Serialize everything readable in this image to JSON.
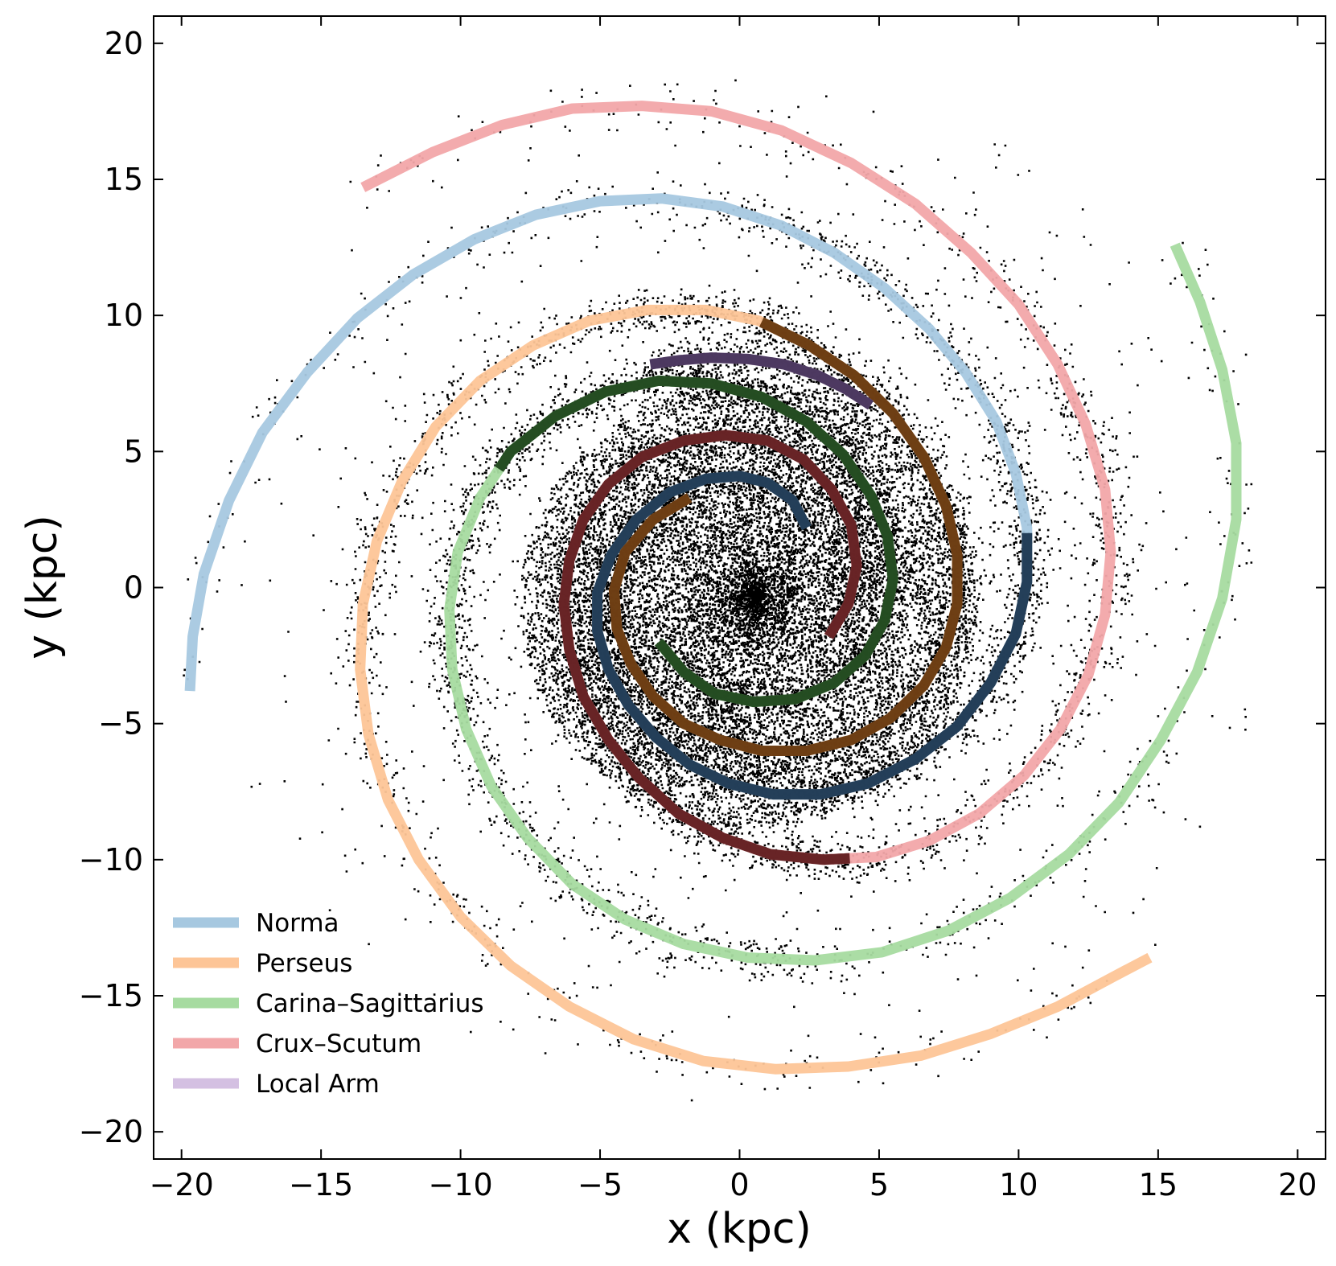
{
  "chart_data": {
    "type": "scatter",
    "title": "",
    "xlabel": "x (kpc)",
    "ylabel": "y (kpc)",
    "xlim": [
      -21,
      21
    ],
    "ylim": [
      -21,
      21
    ],
    "xticks": [
      -20,
      -15,
      -10,
      -5,
      0,
      5,
      10,
      15,
      20
    ],
    "yticks": [
      -20,
      -15,
      -10,
      -5,
      0,
      5,
      10,
      15,
      20
    ],
    "x_tick_labels": [
      "−20",
      "−15",
      "−10",
      "−5",
      "0",
      "5",
      "10",
      "15",
      "20"
    ],
    "y_tick_labels": [
      "−20",
      "−15",
      "−10",
      "−5",
      "0",
      "5",
      "10",
      "15",
      "20"
    ],
    "grid": false,
    "legend_position": "bottom-left",
    "stars": {
      "color": "#000000",
      "description_count": 20000
    },
    "series": [
      {
        "name": "Norma",
        "color": "#a6c8e0",
        "inner_color": "#15304a",
        "points": [
          [
            2.4,
            2.2
          ],
          [
            1.9,
            3.2
          ],
          [
            1.0,
            3.85
          ],
          [
            0.0,
            4.1
          ],
          [
            -1.2,
            4.0
          ],
          [
            -2.5,
            3.5
          ],
          [
            -3.7,
            2.5
          ],
          [
            -4.6,
            1.2
          ],
          [
            -5.1,
            -0.2
          ],
          [
            -5.1,
            -1.6
          ],
          [
            -4.7,
            -3.0
          ],
          [
            -4.0,
            -4.3
          ],
          [
            -3.0,
            -5.5
          ],
          [
            -1.8,
            -6.5
          ],
          [
            -0.4,
            -7.2
          ],
          [
            1.2,
            -7.6
          ],
          [
            2.9,
            -7.6
          ],
          [
            4.6,
            -7.2
          ],
          [
            6.3,
            -6.3
          ],
          [
            7.8,
            -5.1
          ],
          [
            9.0,
            -3.5
          ],
          [
            9.9,
            -1.7
          ],
          [
            10.3,
            0.2
          ],
          [
            10.3,
            2.2
          ],
          [
            9.9,
            4.2
          ],
          [
            9.2,
            6.1
          ],
          [
            8.1,
            7.9
          ],
          [
            6.8,
            9.5
          ],
          [
            5.2,
            11.0
          ],
          [
            3.4,
            12.3
          ],
          [
            1.5,
            13.3
          ],
          [
            -0.6,
            14.0
          ],
          [
            -2.8,
            14.3
          ],
          [
            -5.0,
            14.2
          ],
          [
            -7.3,
            13.7
          ],
          [
            -9.5,
            12.8
          ],
          [
            -11.7,
            11.5
          ],
          [
            -13.7,
            9.9
          ],
          [
            -15.5,
            7.9
          ],
          [
            -17.1,
            5.7
          ],
          [
            -18.3,
            3.2
          ],
          [
            -19.2,
            0.5
          ],
          [
            -19.6,
            -1.8
          ],
          [
            -19.7,
            -3.8
          ]
        ]
      },
      {
        "name": "Perseus",
        "color": "#fdc597",
        "inner_color": "#5e3005",
        "points": [
          [
            -1.8,
            3.3
          ],
          [
            -3.1,
            2.5
          ],
          [
            -4.1,
            1.3
          ],
          [
            -4.5,
            -0.1
          ],
          [
            -4.4,
            -1.5
          ],
          [
            -3.9,
            -2.8
          ],
          [
            -3.1,
            -4.0
          ],
          [
            -2.0,
            -5.0
          ],
          [
            -0.7,
            -5.6
          ],
          [
            0.8,
            -6.0
          ],
          [
            2.4,
            -6.0
          ],
          [
            4.0,
            -5.6
          ],
          [
            5.4,
            -4.8
          ],
          [
            6.6,
            -3.6
          ],
          [
            7.4,
            -2.2
          ],
          [
            7.8,
            -0.6
          ],
          [
            7.8,
            1.2
          ],
          [
            7.4,
            3.0
          ],
          [
            6.6,
            4.8
          ],
          [
            5.5,
            6.4
          ],
          [
            4.1,
            7.8
          ],
          [
            2.5,
            8.9
          ],
          [
            0.7,
            9.8
          ],
          [
            -1.2,
            10.2
          ],
          [
            -3.3,
            10.2
          ],
          [
            -5.4,
            9.8
          ],
          [
            -7.4,
            8.9
          ],
          [
            -9.3,
            7.6
          ],
          [
            -10.9,
            5.9
          ],
          [
            -12.1,
            3.9
          ],
          [
            -13.0,
            1.7
          ],
          [
            -13.5,
            -0.6
          ],
          [
            -13.6,
            -3.0
          ],
          [
            -13.3,
            -5.4
          ],
          [
            -12.6,
            -7.8
          ],
          [
            -11.5,
            -10.0
          ],
          [
            -10.0,
            -12.1
          ],
          [
            -8.2,
            -13.9
          ],
          [
            -6.1,
            -15.4
          ],
          [
            -3.8,
            -16.6
          ],
          [
            -1.3,
            -17.4
          ],
          [
            1.3,
            -17.7
          ],
          [
            3.9,
            -17.6
          ],
          [
            6.5,
            -17.2
          ],
          [
            9.0,
            -16.4
          ],
          [
            11.4,
            -15.4
          ],
          [
            13.4,
            -14.3
          ],
          [
            14.7,
            -13.6
          ]
        ]
      },
      {
        "name": "Carina–Sagittarius",
        "color": "#a6dba0",
        "inner_color": "#163d14",
        "points": [
          [
            -2.9,
            -2.0
          ],
          [
            -2.0,
            -3.1
          ],
          [
            -0.9,
            -3.9
          ],
          [
            0.5,
            -4.2
          ],
          [
            2.0,
            -4.1
          ],
          [
            3.4,
            -3.5
          ],
          [
            4.5,
            -2.5
          ],
          [
            5.2,
            -1.2
          ],
          [
            5.5,
            0.3
          ],
          [
            5.3,
            1.9
          ],
          [
            4.7,
            3.4
          ],
          [
            3.7,
            4.9
          ],
          [
            2.4,
            6.1
          ],
          [
            0.8,
            7.0
          ],
          [
            -1.0,
            7.5
          ],
          [
            -2.9,
            7.6
          ],
          [
            -4.8,
            7.2
          ],
          [
            -6.6,
            6.3
          ],
          [
            -8.2,
            5.0
          ],
          [
            -9.3,
            3.3
          ],
          [
            -10.1,
            1.3
          ],
          [
            -10.4,
            -0.8
          ],
          [
            -10.3,
            -3.0
          ],
          [
            -9.8,
            -5.2
          ],
          [
            -8.9,
            -7.3
          ],
          [
            -7.6,
            -9.2
          ],
          [
            -6.0,
            -10.9
          ],
          [
            -4.1,
            -12.2
          ],
          [
            -2.0,
            -13.1
          ],
          [
            0.3,
            -13.6
          ],
          [
            2.7,
            -13.7
          ],
          [
            5.1,
            -13.4
          ],
          [
            7.5,
            -12.6
          ],
          [
            9.7,
            -11.4
          ],
          [
            11.8,
            -9.8
          ],
          [
            13.6,
            -7.9
          ],
          [
            15.1,
            -5.6
          ],
          [
            16.4,
            -3.1
          ],
          [
            17.3,
            -0.4
          ],
          [
            17.8,
            2.5
          ],
          [
            17.8,
            5.3
          ],
          [
            17.3,
            8.0
          ],
          [
            16.5,
            10.5
          ],
          [
            15.6,
            12.6
          ]
        ]
      },
      {
        "name": "Crux–Scutum",
        "color": "#f2a7a9",
        "inner_color": "#591517",
        "points": [
          [
            3.2,
            -1.8
          ],
          [
            3.9,
            -0.6
          ],
          [
            4.2,
            0.8
          ],
          [
            4.0,
            2.3
          ],
          [
            3.3,
            3.6
          ],
          [
            2.3,
            4.7
          ],
          [
            1.0,
            5.4
          ],
          [
            -0.5,
            5.6
          ],
          [
            -2.0,
            5.4
          ],
          [
            -3.5,
            4.8
          ],
          [
            -4.7,
            3.8
          ],
          [
            -5.6,
            2.5
          ],
          [
            -6.1,
            1.0
          ],
          [
            -6.3,
            -0.6
          ],
          [
            -6.1,
            -2.3
          ],
          [
            -5.6,
            -4.0
          ],
          [
            -4.7,
            -5.6
          ],
          [
            -3.6,
            -7.0
          ],
          [
            -2.2,
            -8.3
          ],
          [
            -0.6,
            -9.2
          ],
          [
            1.1,
            -9.8
          ],
          [
            3.0,
            -10.0
          ],
          [
            4.9,
            -9.9
          ],
          [
            6.8,
            -9.3
          ],
          [
            8.6,
            -8.3
          ],
          [
            10.2,
            -6.9
          ],
          [
            11.5,
            -5.2
          ],
          [
            12.5,
            -3.2
          ],
          [
            13.1,
            -1.0
          ],
          [
            13.3,
            1.3
          ],
          [
            13.1,
            3.6
          ],
          [
            12.4,
            6.0
          ],
          [
            11.4,
            8.2
          ],
          [
            10.0,
            10.4
          ],
          [
            8.3,
            12.3
          ],
          [
            6.3,
            14.1
          ],
          [
            4.0,
            15.6
          ],
          [
            1.5,
            16.8
          ],
          [
            -1.0,
            17.5
          ],
          [
            -3.5,
            17.7
          ],
          [
            -6.0,
            17.6
          ],
          [
            -8.5,
            17.0
          ],
          [
            -11.0,
            16.0
          ],
          [
            -13.5,
            14.7
          ]
        ]
      },
      {
        "name": "Local Arm",
        "color": "#d4c0e2",
        "inner_color": "#3e2a52",
        "points": [
          [
            -3.2,
            8.2
          ],
          [
            -2.2,
            8.35
          ],
          [
            -1.0,
            8.45
          ],
          [
            0.3,
            8.4
          ],
          [
            1.6,
            8.2
          ],
          [
            2.8,
            7.8
          ],
          [
            3.8,
            7.3
          ],
          [
            4.7,
            6.7
          ]
        ]
      }
    ]
  }
}
